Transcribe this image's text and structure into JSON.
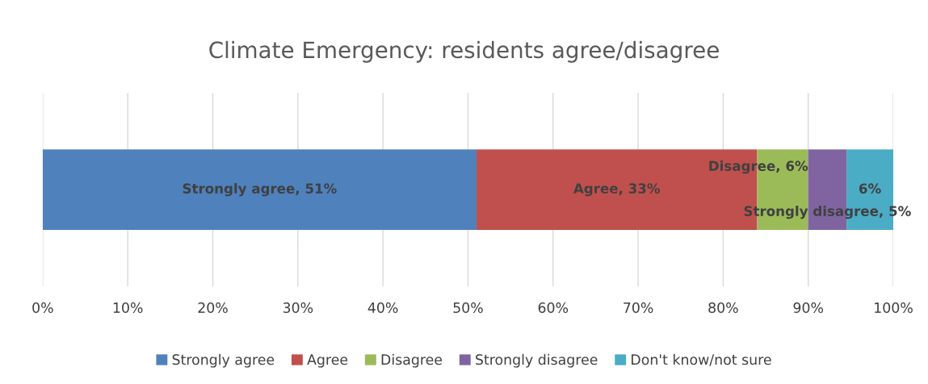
{
  "chart_data": {
    "type": "bar",
    "orientation": "horizontal",
    "stacked": true,
    "title": "Climate Emergency: residents agree/disagree",
    "categories": [
      null
    ],
    "series": [
      {
        "name": "Strongly agree",
        "color": "#4f81bd",
        "values": [
          51
        ],
        "value_labels": [
          "Strongly agree, 51%"
        ]
      },
      {
        "name": "Agree",
        "color": "#c0504d",
        "values": [
          33
        ],
        "value_labels": [
          "Agree, 33%"
        ]
      },
      {
        "name": "Disagree",
        "color": "#9bbb59",
        "values": [
          6
        ],
        "value_labels": [
          "Disagree, 6%"
        ]
      },
      {
        "name": "Strongly disagree",
        "color": "#8064a2",
        "values": [
          4.5
        ],
        "value_labels": [
          "Strongly disagree, 5%"
        ]
      },
      {
        "name": "Don't know/not sure",
        "color": "#4bacc6",
        "values": [
          5.5
        ],
        "value_labels": [
          "6%"
        ]
      }
    ],
    "xlim": [
      0,
      100
    ],
    "xticks": [
      {
        "value": 0,
        "label": "0%"
      },
      {
        "value": 10,
        "label": "10%"
      },
      {
        "value": 20,
        "label": "20%"
      },
      {
        "value": 30,
        "label": "30%"
      },
      {
        "value": 40,
        "label": "40%"
      },
      {
        "value": 50,
        "label": "50%"
      },
      {
        "value": 60,
        "label": "60%"
      },
      {
        "value": 70,
        "label": "70%"
      },
      {
        "value": 80,
        "label": "80%"
      },
      {
        "value": 90,
        "label": "90%"
      },
      {
        "value": 100,
        "label": "100%"
      }
    ],
    "grid": "x",
    "legend": "bottom"
  }
}
